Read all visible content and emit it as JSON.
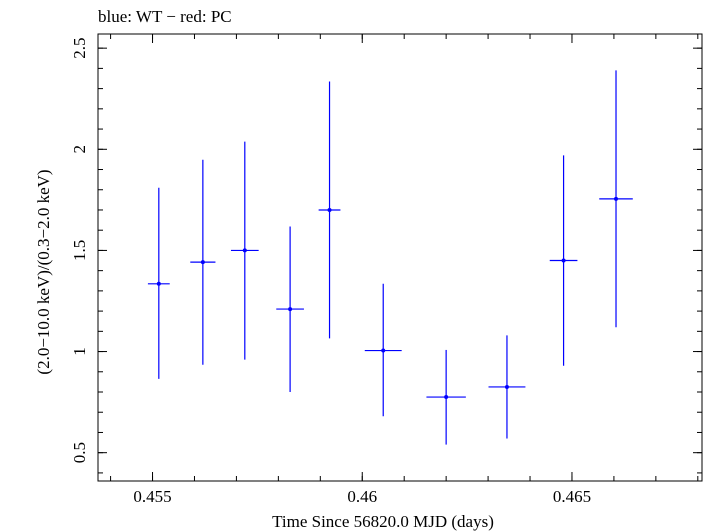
{
  "chart_data": {
    "type": "scatter",
    "title": "blue: WT − red: PC",
    "xlabel": "Time Since 56820.0 MJD (days)",
    "ylabel": "(2.0−10.0 keV)/(0.3−2.0 keV)",
    "xlim": [
      0.4537,
      0.4681
    ],
    "ylim": [
      0.36,
      2.57
    ],
    "xticks": [
      0.455,
      0.46,
      0.465
    ],
    "xtick_labels": [
      "0.455",
      "0.46",
      "0.465"
    ],
    "yticks": [
      0.5,
      1,
      1.5,
      2,
      2.5
    ],
    "ytick_labels": [
      "0.5",
      "1",
      "1.5",
      "2",
      "2.5"
    ],
    "grid": false,
    "series": [
      {
        "color": "#0000ff",
        "points": [
          {
            "x": 0.45515,
            "xerr": 0.00026,
            "y": 1.335,
            "ylo": 0.865,
            "yhi": 1.81
          },
          {
            "x": 0.4562,
            "xerr": 0.0003,
            "y": 1.442,
            "ylo": 0.935,
            "yhi": 1.948
          },
          {
            "x": 0.4572,
            "xerr": 0.00033,
            "y": 1.5,
            "ylo": 0.96,
            "yhi": 2.038
          },
          {
            "x": 0.45828,
            "xerr": 0.00033,
            "y": 1.21,
            "ylo": 0.8,
            "yhi": 1.618
          },
          {
            "x": 0.45922,
            "xerr": 0.00026,
            "y": 1.7,
            "ylo": 1.065,
            "yhi": 2.335
          },
          {
            "x": 0.4605,
            "xerr": 0.00044,
            "y": 1.005,
            "ylo": 0.68,
            "yhi": 1.335
          },
          {
            "x": 0.462,
            "xerr": 0.00047,
            "y": 0.775,
            "ylo": 0.54,
            "yhi": 1.008
          },
          {
            "x": 0.46345,
            "xerr": 0.00044,
            "y": 0.825,
            "ylo": 0.57,
            "yhi": 1.08
          },
          {
            "x": 0.4648,
            "xerr": 0.00033,
            "y": 1.45,
            "ylo": 0.93,
            "yhi": 1.97
          },
          {
            "x": 0.46605,
            "xerr": 0.0004,
            "y": 1.755,
            "ylo": 1.12,
            "yhi": 2.39
          }
        ]
      }
    ]
  }
}
